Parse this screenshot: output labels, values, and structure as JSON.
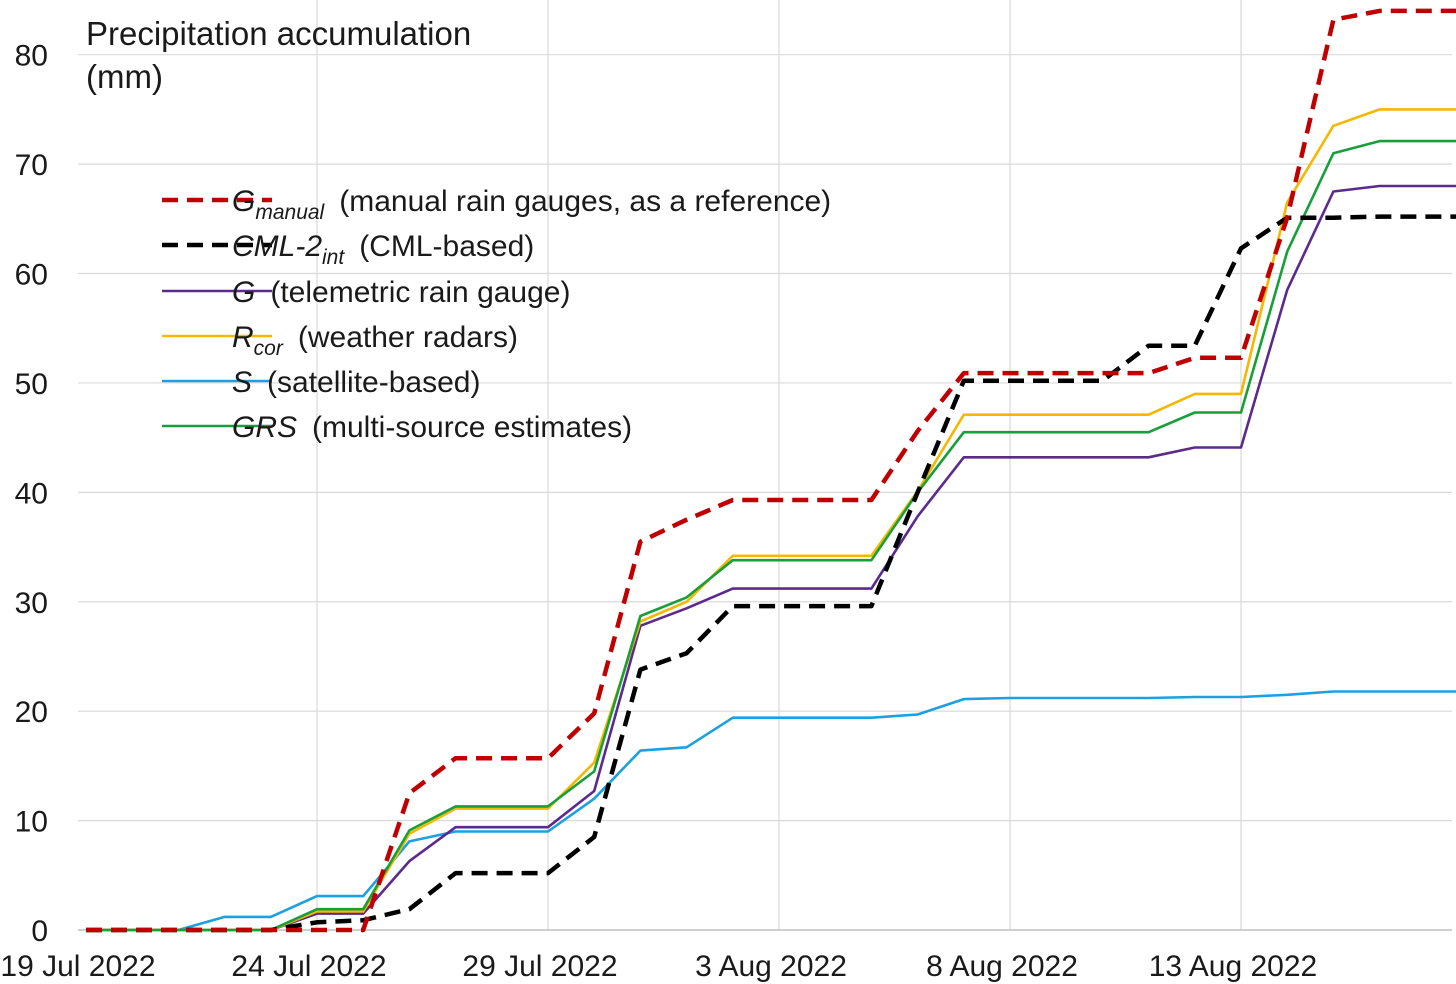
{
  "chart_data": {
    "type": "line",
    "ylabel_lines": [
      "Precipitation accumulation",
      "(mm)"
    ],
    "xlabel": "",
    "ylim": [
      0,
      85
    ],
    "yticks": [
      0,
      10,
      20,
      30,
      40,
      50,
      60,
      70,
      80
    ],
    "x_start": "2022-07-19",
    "xtick_labels": [
      "19 Jul 2022",
      "24 Jul 2022",
      "29 Jul 2022",
      "3 Aug 2022",
      "8 Aug 2022",
      "13 Aug 2022"
    ],
    "grid": true,
    "legend_position": "top-left",
    "x": [
      "2022-07-19",
      "2022-07-20",
      "2022-07-21",
      "2022-07-22",
      "2022-07-23",
      "2022-07-24",
      "2022-07-25",
      "2022-07-26",
      "2022-07-27",
      "2022-07-28",
      "2022-07-29",
      "2022-07-30",
      "2022-07-31",
      "2022-08-01",
      "2022-08-02",
      "2022-08-03",
      "2022-08-04",
      "2022-08-05",
      "2022-08-06",
      "2022-08-07",
      "2022-08-08",
      "2022-08-09",
      "2022-08-10",
      "2022-08-11",
      "2022-08-12",
      "2022-08-13",
      "2022-08-14",
      "2022-08-15",
      "2022-08-16",
      "2022-08-17",
      "2022-08-18"
    ],
    "series": [
      {
        "name": "G",
        "sub": "manual",
        "desc": "(manual rain gauges, as a reference)",
        "color": "#c00000",
        "dash": true,
        "values": [
          0,
          0,
          0,
          0,
          0,
          0,
          0,
          12.5,
          15.7,
          15.7,
          15.7,
          19.8,
          35.5,
          37.5,
          39.3,
          39.3,
          39.3,
          39.3,
          45.6,
          50.9,
          50.9,
          50.9,
          50.9,
          50.9,
          52.3,
          52.3,
          65.1,
          83.2,
          84.0,
          84.0,
          84.0
        ]
      },
      {
        "name": "CML-2",
        "sub": "int",
        "desc": "(CML-based)",
        "color": "#000000",
        "dash": true,
        "values": [
          0,
          0,
          0,
          0,
          0,
          0.7,
          0.9,
          1.9,
          5.2,
          5.2,
          5.2,
          8.5,
          23.8,
          25.3,
          29.6,
          29.6,
          29.6,
          29.6,
          40.0,
          50.2,
          50.2,
          50.2,
          50.2,
          53.4,
          53.4,
          62.3,
          65.1,
          65.1,
          65.2,
          65.2,
          65.2
        ]
      },
      {
        "name": "G",
        "sub": "",
        "desc": "(telemetric rain gauge)",
        "color": "#5b2a8c",
        "dash": false,
        "values": [
          0,
          0,
          0,
          0,
          0,
          1.5,
          1.5,
          6.3,
          9.4,
          9.4,
          9.4,
          12.7,
          27.8,
          29.4,
          31.2,
          31.2,
          31.2,
          31.2,
          37.8,
          43.2,
          43.2,
          43.2,
          43.2,
          43.2,
          44.1,
          44.1,
          58.5,
          67.5,
          68.0,
          68.0,
          68.0
        ]
      },
      {
        "name": "R",
        "sub": "cor",
        "desc": "(weather radars)",
        "color": "#f5b800",
        "dash": false,
        "values": [
          0,
          0,
          0,
          0,
          0,
          1.7,
          1.7,
          8.8,
          11.1,
          11.1,
          11.1,
          15.3,
          28.2,
          30.0,
          34.2,
          34.2,
          34.2,
          34.2,
          40.1,
          47.1,
          47.1,
          47.1,
          47.1,
          47.1,
          49.0,
          49.0,
          66.5,
          73.5,
          75.0,
          75.0,
          75.0
        ]
      },
      {
        "name": "S",
        "sub": "",
        "desc": "(satellite-based)",
        "color": "#1ba1e2",
        "dash": false,
        "values": [
          0,
          0,
          0,
          1.2,
          1.2,
          3.1,
          3.1,
          8.1,
          9.0,
          9.0,
          9.0,
          12.0,
          16.4,
          16.7,
          19.4,
          19.4,
          19.4,
          19.4,
          19.7,
          21.1,
          21.2,
          21.2,
          21.2,
          21.2,
          21.3,
          21.3,
          21.5,
          21.8,
          21.8,
          21.8,
          21.8
        ]
      },
      {
        "name": "GRS",
        "sub": "",
        "desc": "(multi-source estimates)",
        "color": "#17a03a",
        "dash": false,
        "values": [
          0,
          0,
          0,
          0,
          0,
          1.9,
          1.9,
          9.1,
          11.3,
          11.3,
          11.3,
          14.5,
          28.7,
          30.4,
          33.8,
          33.8,
          33.8,
          33.8,
          40.0,
          45.5,
          45.5,
          45.5,
          45.5,
          45.5,
          47.3,
          47.3,
          62.0,
          71.0,
          72.1,
          72.1,
          72.1
        ]
      }
    ]
  }
}
